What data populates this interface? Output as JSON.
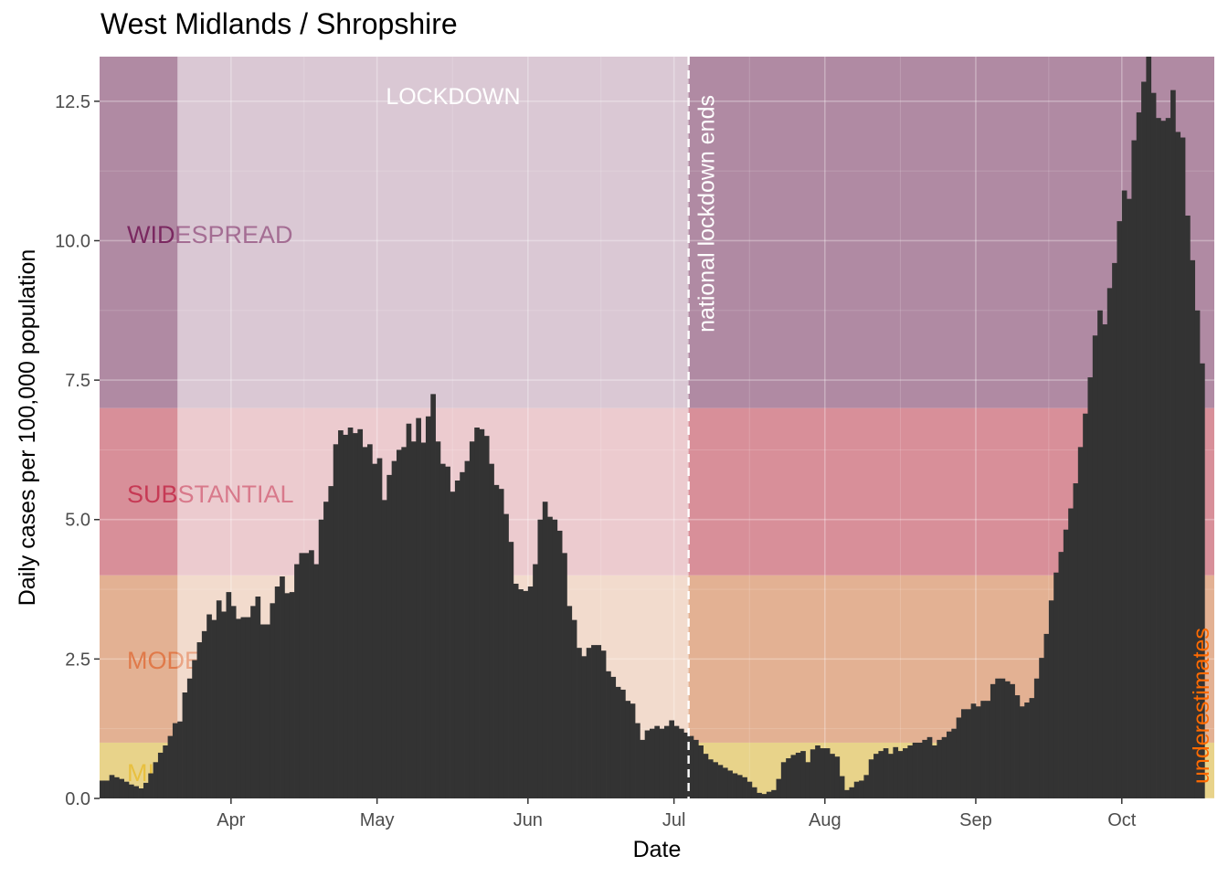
{
  "chart_data": {
    "type": "bar",
    "title": "West Midlands / Shropshire",
    "xlabel": "Date",
    "ylabel": "Daily cases per 100,000 population",
    "x_start": "2020-03-05",
    "x_end": "2020-10-19",
    "ylim": [
      0,
      13.3
    ],
    "y_ticks": [
      0,
      2.5,
      5,
      7.5,
      10,
      12.5
    ],
    "y_tick_labels": [
      "0.0",
      "2.5",
      "5.0",
      "7.5",
      "10.0",
      "12.5"
    ],
    "x_ticks": [
      {
        "date": "2020-04-01",
        "label": "Apr"
      },
      {
        "date": "2020-05-01",
        "label": "May"
      },
      {
        "date": "2020-06-01",
        "label": "Jun"
      },
      {
        "date": "2020-07-01",
        "label": "Jul"
      },
      {
        "date": "2020-08-01",
        "label": "Aug"
      },
      {
        "date": "2020-09-01",
        "label": "Sep"
      },
      {
        "date": "2020-10-01",
        "label": "Oct"
      }
    ],
    "grid": true,
    "bands": [
      {
        "label": "MILD",
        "ymin": 0,
        "ymax": 1,
        "color": "#e8d38a"
      },
      {
        "label": "MODERATE",
        "ymin": 1,
        "ymax": 4,
        "color": "#e3b193"
      },
      {
        "label": "SUBSTANTIAL",
        "ymin": 4,
        "ymax": 7,
        "color": "#d88f99"
      },
      {
        "label": "WIDESPREAD",
        "ymin": 7,
        "ymax": 13.3,
        "color": "#b08aa3"
      }
    ],
    "band_label_colors": [
      "#e8c040",
      "#e07a4a",
      "#c63a55",
      "#7a2860"
    ],
    "lockdown": {
      "label": "LOCKDOWN",
      "start": "2020-03-21",
      "end": "2020-07-04",
      "color": "#ffffff"
    },
    "annotations": [
      {
        "label": "national lockdown ends",
        "date": "2020-07-04",
        "color": "#ffffff"
      },
      {
        "label": "underestimates",
        "color": "#ff6a00"
      }
    ],
    "bar_color": "#333333",
    "series": [
      {
        "values": [
          0.32,
          0.32,
          0.42,
          0.38,
          0.35,
          0.3,
          0.25,
          0.22,
          0.18,
          0.28,
          0.45,
          0.65,
          0.82,
          0.95,
          1.12,
          1.35,
          1.38,
          1.9,
          2.15,
          2.48,
          2.8,
          3.0,
          3.3,
          3.2,
          3.55,
          3.35,
          3.7,
          3.45,
          3.22,
          3.25,
          3.25,
          3.45,
          3.62,
          3.12,
          3.12,
          3.5,
          3.8,
          3.98,
          3.68,
          3.7,
          4.2,
          4.4,
          4.4,
          4.45,
          4.2,
          5.0,
          5.32,
          5.6,
          6.35,
          6.6,
          6.52,
          6.65,
          6.55,
          6.62,
          6.3,
          6.35,
          6.0,
          6.1,
          5.35,
          5.8,
          6.05,
          6.25,
          6.3,
          6.72,
          6.4,
          6.82,
          6.38,
          6.85,
          7.25,
          6.4,
          6.0,
          5.95,
          5.5,
          5.7,
          5.85,
          6.05,
          6.4,
          6.65,
          6.62,
          6.5,
          6.0,
          5.62,
          5.55,
          5.1,
          4.6,
          3.85,
          3.75,
          3.72,
          3.8,
          4.2,
          5.0,
          5.32,
          5.05,
          5.0,
          4.8,
          4.4,
          3.45,
          3.2,
          2.7,
          2.55,
          2.7,
          2.75,
          2.75,
          2.65,
          2.28,
          2.18,
          2.0,
          1.95,
          1.75,
          1.7,
          1.35,
          1.05,
          1.22,
          1.25,
          1.3,
          1.25,
          1.3,
          1.4,
          1.3,
          1.25,
          1.18,
          1.12,
          1.05,
          0.95,
          0.8,
          0.7,
          0.65,
          0.6,
          0.55,
          0.5,
          0.45,
          0.42,
          0.38,
          0.3,
          0.2,
          0.1,
          0.08,
          0.12,
          0.15,
          0.35,
          0.65,
          0.72,
          0.78,
          0.82,
          0.85,
          0.65,
          0.88,
          0.95,
          0.9,
          0.9,
          0.8,
          0.75,
          0.4,
          0.15,
          0.2,
          0.3,
          0.32,
          0.42,
          0.7,
          0.8,
          0.85,
          0.9,
          0.8,
          0.92,
          0.85,
          0.9,
          0.95,
          1.0,
          1.0,
          1.05,
          1.1,
          0.95,
          1.05,
          1.1,
          1.2,
          1.25,
          1.45,
          1.6,
          1.6,
          1.7,
          1.65,
          1.75,
          1.75,
          2.05,
          2.15,
          2.15,
          2.1,
          2.05,
          1.85,
          1.65,
          1.72,
          1.8,
          2.15,
          2.52,
          2.95,
          3.55,
          4.05,
          4.42,
          4.82,
          5.2,
          5.65,
          6.3,
          6.9,
          7.55,
          8.3,
          8.75,
          8.5,
          9.15,
          9.6,
          10.35,
          10.9,
          10.75,
          11.8,
          12.3,
          12.85,
          13.3,
          12.65,
          12.2,
          12.15,
          12.2,
          12.7,
          11.95,
          11.85,
          10.45,
          9.65,
          8.75,
          7.8
        ]
      }
    ]
  }
}
